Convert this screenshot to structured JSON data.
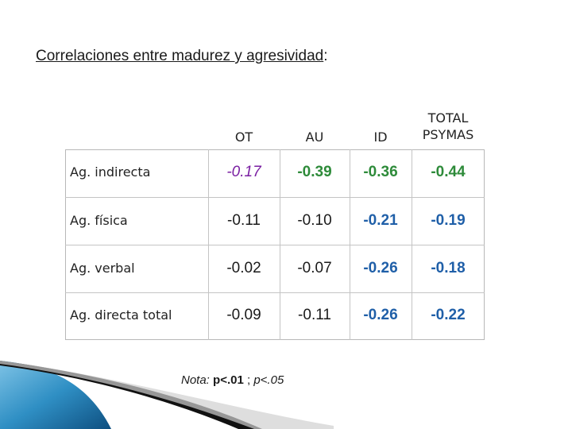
{
  "title": {
    "text": "Correlaciones entre madurez y agresividad",
    "suffix": ":"
  },
  "table": {
    "columns": [
      {
        "label_line1": "OT",
        "label_line2": ""
      },
      {
        "label_line1": "AU",
        "label_line2": ""
      },
      {
        "label_line1": "ID",
        "label_line2": ""
      },
      {
        "label_line1": "TOTAL",
        "label_line2": "PSYMAS"
      }
    ],
    "rows": [
      {
        "label": "Ag. indirecta",
        "values": [
          "-0.17",
          "-0.39",
          "-0.36",
          "-0.44"
        ]
      },
      {
        "label": "Ag. física",
        "values": [
          "-0.11",
          "-0.10",
          "-0.21",
          "-0.19"
        ]
      },
      {
        "label": "Ag. verbal",
        "values": [
          "-0.02",
          "-0.07",
          "-0.26",
          "-0.18"
        ]
      },
      {
        "label": "Ag. directa total",
        "values": [
          "-0.09",
          "-0.11",
          "-0.26",
          "-0.22"
        ]
      }
    ],
    "colors": {
      "purple": "#7a1fa2",
      "green": "#2e8b3a",
      "blue": "#1f5fa8",
      "black": "#1a1a1a"
    }
  },
  "note": {
    "label": "Nota:",
    "bold_part": "p<.01",
    "separator": ";",
    "italic_part": "p<.05"
  }
}
